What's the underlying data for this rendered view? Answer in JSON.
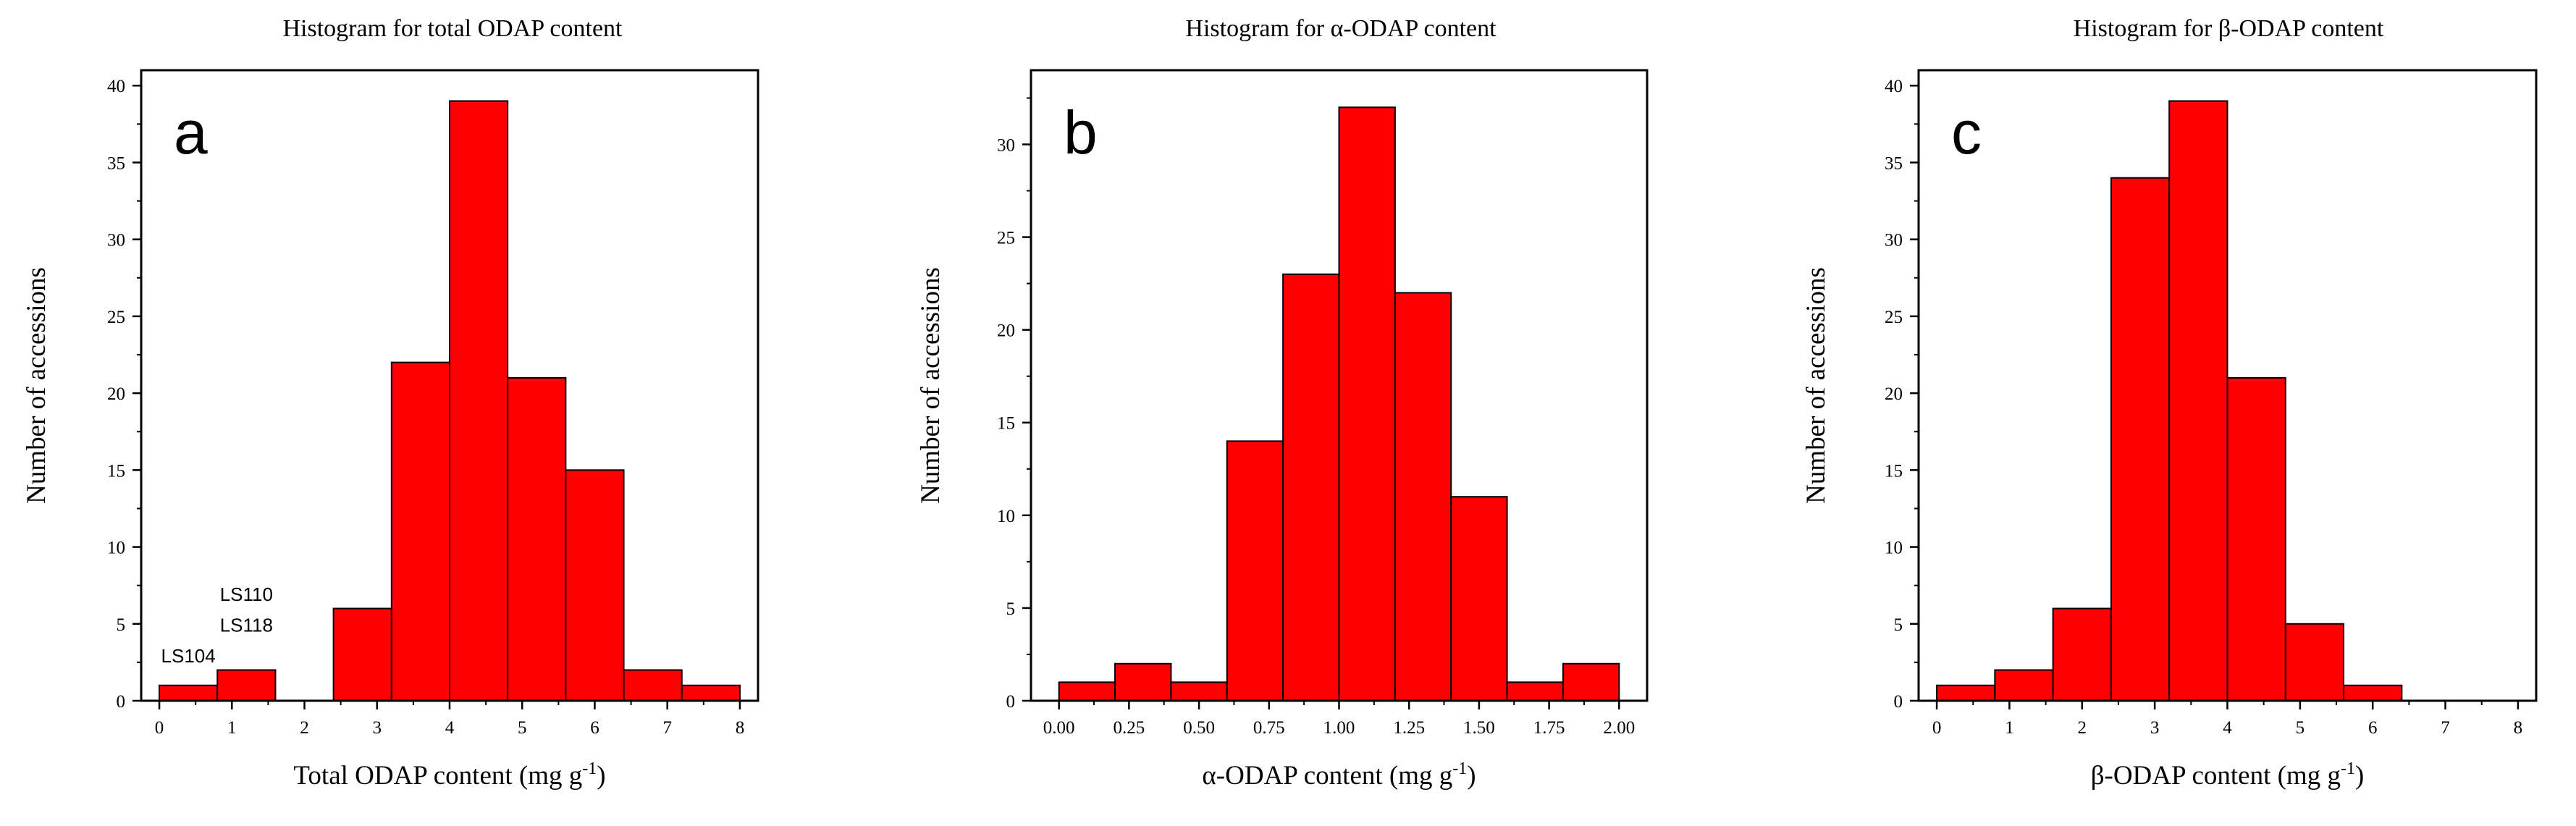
{
  "chart_data": [
    {
      "type": "bar",
      "panel_label": "a",
      "title": "Histogram for total ODAP content",
      "xlabel": "Total ODAP content (mg g",
      "xlabel_sup": "-1",
      "xlabel_end": ")",
      "ylabel": "Number of accessions",
      "xlim": [
        -0.25,
        8.25
      ],
      "ylim": [
        0,
        41
      ],
      "xticks": [
        0,
        1,
        2,
        3,
        4,
        5,
        6,
        7,
        8
      ],
      "xtick_labels": [
        "0",
        "1",
        "2",
        "3",
        "4",
        "5",
        "6",
        "7",
        "8"
      ],
      "yticks": [
        0,
        5,
        10,
        15,
        20,
        25,
        30,
        35,
        40
      ],
      "ytick_labels": [
        "0",
        "5",
        "10",
        "15",
        "20",
        "25",
        "30",
        "35",
        "40"
      ],
      "bin_edges": [
        0,
        0.8,
        1.6,
        2.4,
        3.2,
        4.0,
        4.8,
        5.6,
        6.4,
        7.2,
        8.0
      ],
      "values": [
        1,
        2,
        0,
        6,
        22,
        39,
        21,
        15,
        2,
        1
      ],
      "bar_color": "#ff0000",
      "annotations": [
        {
          "text": "LS104",
          "x": 0.4,
          "y": 2.5
        },
        {
          "text": "LS110",
          "x": 1.2,
          "y": 6.5
        },
        {
          "text": "LS118",
          "x": 1.2,
          "y": 4.5
        }
      ]
    },
    {
      "type": "bar",
      "panel_label": "b",
      "title": "Histogram for α-ODAP content",
      "xlabel": "α-ODAP content (mg g",
      "xlabel_sup": "-1",
      "xlabel_end": ")",
      "ylabel": "Number of accessions",
      "xlim": [
        -0.1,
        2.1
      ],
      "ylim": [
        0,
        34
      ],
      "xticks": [
        0,
        0.25,
        0.5,
        0.75,
        1.0,
        1.25,
        1.5,
        1.75,
        2.0
      ],
      "xtick_labels": [
        "0.00",
        "0.25",
        "0.50",
        "0.75",
        "1.00",
        "1.25",
        "1.50",
        "1.75",
        "2.00"
      ],
      "yticks": [
        0,
        5,
        10,
        15,
        20,
        25,
        30
      ],
      "ytick_labels": [
        "0",
        "5",
        "10",
        "15",
        "20",
        "25",
        "30"
      ],
      "bin_edges": [
        0,
        0.2,
        0.4,
        0.6,
        0.8,
        1.0,
        1.2,
        1.4,
        1.6,
        1.8,
        2.0
      ],
      "values": [
        1,
        2,
        1,
        14,
        23,
        32,
        22,
        11,
        1,
        2
      ],
      "bar_color": "#ff0000",
      "annotations": []
    },
    {
      "type": "bar",
      "panel_label": "c",
      "title": "Histogram for β-ODAP content",
      "xlabel": "β-ODAP content (mg g",
      "xlabel_sup": "-1",
      "xlabel_end": ")",
      "ylabel": "Number of accessions",
      "xlim": [
        -0.25,
        8.25
      ],
      "ylim": [
        0,
        41
      ],
      "xticks": [
        0,
        1,
        2,
        3,
        4,
        5,
        6,
        7,
        8
      ],
      "xtick_labels": [
        "0",
        "1",
        "2",
        "3",
        "4",
        "5",
        "6",
        "7",
        "8"
      ],
      "yticks": [
        0,
        5,
        10,
        15,
        20,
        25,
        30,
        35,
        40
      ],
      "ytick_labels": [
        "0",
        "5",
        "10",
        "15",
        "20",
        "25",
        "30",
        "35",
        "40"
      ],
      "bin_edges": [
        0,
        0.8,
        1.6,
        2.4,
        3.2,
        4.0,
        4.8,
        5.6,
        6.4,
        7.2,
        8.0
      ],
      "values": [
        1,
        2,
        6,
        34,
        39,
        21,
        5,
        1,
        0,
        0
      ],
      "bar_color": "#ff0000",
      "annotations": []
    }
  ]
}
